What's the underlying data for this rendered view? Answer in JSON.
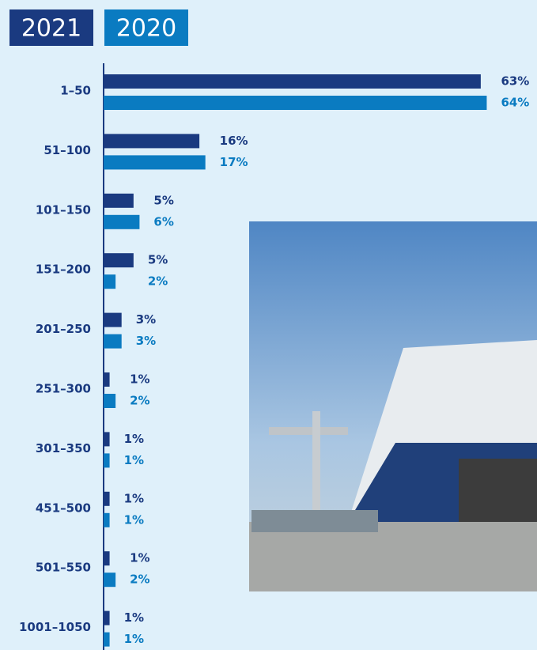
{
  "chart_data": {
    "type": "bar",
    "orientation": "horizontal",
    "categories": [
      "1–50",
      "51–100",
      "101–150",
      "151–200",
      "201–250",
      "251–300",
      "301–350",
      "451–500",
      "501–550",
      "1001–1050"
    ],
    "series": [
      {
        "name": "2021",
        "color": "#1a3a80",
        "values": [
          63,
          16,
          5,
          5,
          3,
          1,
          1,
          1,
          1,
          1
        ],
        "value_labels": [
          "63%",
          "16%",
          "5%",
          "5%",
          "3%",
          "1%",
          "1%",
          "1%",
          "1%",
          "1%"
        ]
      },
      {
        "name": "2020",
        "color": "#0a7bc1",
        "values": [
          64,
          17,
          6,
          2,
          3,
          2,
          1,
          1,
          2,
          1
        ],
        "value_labels": [
          "64%",
          "17%",
          "6%",
          "2%",
          "3%",
          "2%",
          "1%",
          "1%",
          "2%",
          "1%"
        ]
      }
    ],
    "xlim": [
      0,
      72
    ]
  }
}
